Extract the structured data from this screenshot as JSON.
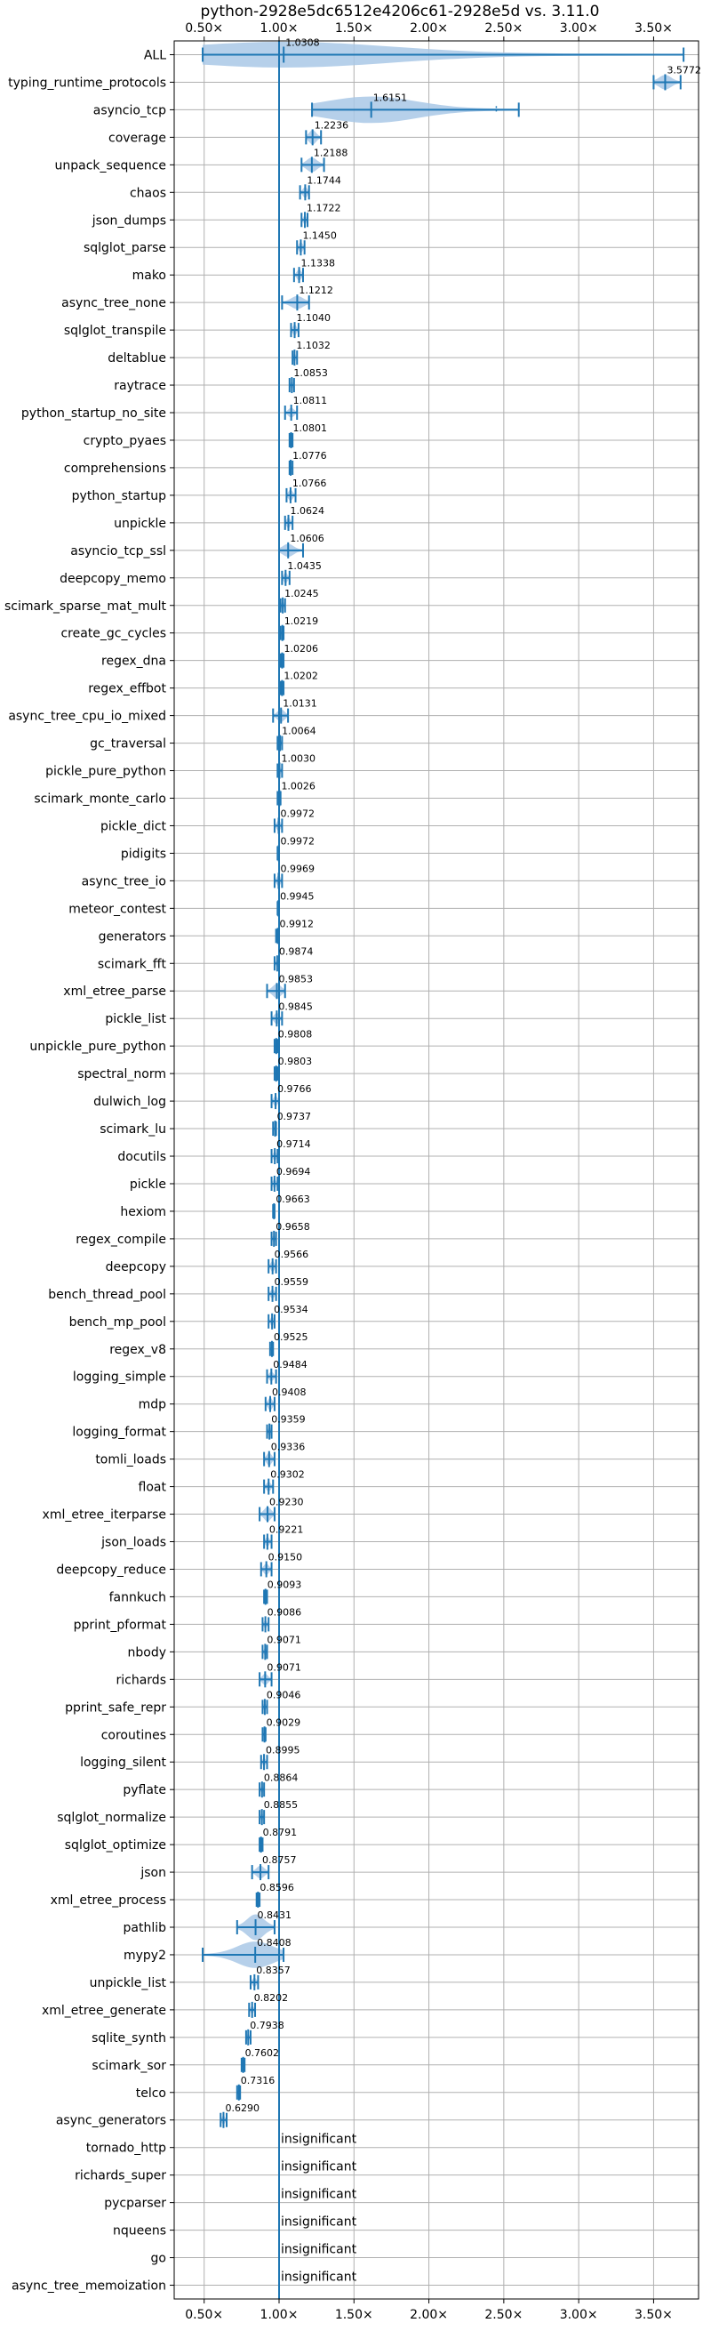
{
  "chart_data": {
    "type": "violin",
    "title": "python-2928e5dc6512e4206c61-2928e5d vs. 3.11.0",
    "xlim": [
      0.3,
      3.8
    ],
    "x_ticks": [
      0.5,
      1.0,
      1.5,
      2.0,
      2.5,
      3.0,
      3.5
    ],
    "x_tick_labels": [
      "0.50×",
      "1.00×",
      "1.50×",
      "2.00×",
      "2.50×",
      "3.00×",
      "3.50×"
    ],
    "reference_line": 1.0,
    "grid": true,
    "insignificant_label": "insignificant",
    "rows": [
      {
        "name": "ALL",
        "label": "1.0308",
        "median": 1.0308,
        "min": 0.49,
        "max": 3.7,
        "width": 0.15,
        "outliers": []
      },
      {
        "name": "typing_runtime_protocols",
        "label": "3.5772",
        "median": 3.5772,
        "min": 3.5,
        "max": 3.68,
        "width": 0.08,
        "outliers": []
      },
      {
        "name": "asyncio_tcp",
        "label": "1.6151",
        "median": 1.6151,
        "min": 1.22,
        "max": 2.6,
        "width": 0.35,
        "outliers": [
          2.45
        ]
      },
      {
        "name": "coverage",
        "label": "1.2236",
        "median": 1.2236,
        "min": 1.18,
        "max": 1.28,
        "width": 0.08,
        "outliers": []
      },
      {
        "name": "unpack_sequence",
        "label": "1.2188",
        "median": 1.2188,
        "min": 1.15,
        "max": 1.3,
        "width": 0.08,
        "outliers": []
      },
      {
        "name": "chaos",
        "label": "1.1744",
        "median": 1.1744,
        "min": 1.14,
        "max": 1.2,
        "width": 0.06,
        "outliers": []
      },
      {
        "name": "json_dumps",
        "label": "1.1722",
        "median": 1.1722,
        "min": 1.15,
        "max": 1.19,
        "width": 0.05,
        "outliers": []
      },
      {
        "name": "sqlglot_parse",
        "label": "1.1450",
        "median": 1.145,
        "min": 1.12,
        "max": 1.17,
        "width": 0.06,
        "outliers": []
      },
      {
        "name": "mako",
        "label": "1.1338",
        "median": 1.1338,
        "min": 1.1,
        "max": 1.16,
        "width": 0.06,
        "outliers": []
      },
      {
        "name": "async_tree_none",
        "label": "1.1212",
        "median": 1.1212,
        "min": 1.02,
        "max": 1.2,
        "width": 0.07,
        "outliers": []
      },
      {
        "name": "sqlglot_transpile",
        "label": "1.1040",
        "median": 1.104,
        "min": 1.08,
        "max": 1.13,
        "width": 0.06,
        "outliers": []
      },
      {
        "name": "deltablue",
        "label": "1.1032",
        "median": 1.1032,
        "min": 1.09,
        "max": 1.12,
        "width": 0.05,
        "outliers": []
      },
      {
        "name": "raytrace",
        "label": "1.0853",
        "median": 1.0853,
        "min": 1.07,
        "max": 1.1,
        "width": 0.04,
        "outliers": []
      },
      {
        "name": "python_startup_no_site",
        "label": "1.0811",
        "median": 1.0811,
        "min": 1.04,
        "max": 1.12,
        "width": 0.05,
        "outliers": []
      },
      {
        "name": "crypto_pyaes",
        "label": "1.0801",
        "median": 1.0801,
        "min": 1.07,
        "max": 1.09,
        "width": 0.04,
        "outliers": []
      },
      {
        "name": "comprehensions",
        "label": "1.0776",
        "median": 1.0776,
        "min": 1.07,
        "max": 1.09,
        "width": 0.04,
        "outliers": []
      },
      {
        "name": "python_startup",
        "label": "1.0766",
        "median": 1.0766,
        "min": 1.05,
        "max": 1.11,
        "width": 0.06,
        "outliers": []
      },
      {
        "name": "unpickle",
        "label": "1.0624",
        "median": 1.0624,
        "min": 1.04,
        "max": 1.09,
        "width": 0.06,
        "outliers": []
      },
      {
        "name": "asyncio_tcp_ssl",
        "label": "1.0606",
        "median": 1.0606,
        "min": 1.0,
        "max": 1.16,
        "width": 0.07,
        "outliers": []
      },
      {
        "name": "deepcopy_memo",
        "label": "1.0435",
        "median": 1.0435,
        "min": 1.02,
        "max": 1.07,
        "width": 0.06,
        "outliers": []
      },
      {
        "name": "scimark_sparse_mat_mult",
        "label": "1.0245",
        "median": 1.0245,
        "min": 1.01,
        "max": 1.04,
        "width": 0.05,
        "outliers": []
      },
      {
        "name": "create_gc_cycles",
        "label": "1.0219",
        "median": 1.0219,
        "min": 1.01,
        "max": 1.03,
        "width": 0.05,
        "outliers": []
      },
      {
        "name": "regex_dna",
        "label": "1.0206",
        "median": 1.0206,
        "min": 1.01,
        "max": 1.03,
        "width": 0.05,
        "outliers": []
      },
      {
        "name": "regex_effbot",
        "label": "1.0202",
        "median": 1.0202,
        "min": 1.01,
        "max": 1.03,
        "width": 0.04,
        "outliers": []
      },
      {
        "name": "async_tree_cpu_io_mixed",
        "label": "1.0131",
        "median": 1.0131,
        "min": 0.96,
        "max": 1.06,
        "width": 0.07,
        "outliers": []
      },
      {
        "name": "gc_traversal",
        "label": "1.0064",
        "median": 1.0064,
        "min": 0.99,
        "max": 1.02,
        "width": 0.04,
        "outliers": []
      },
      {
        "name": "pickle_pure_python",
        "label": "1.0030",
        "median": 1.003,
        "min": 0.99,
        "max": 1.02,
        "width": 0.05,
        "outliers": []
      },
      {
        "name": "scimark_monte_carlo",
        "label": "1.0026",
        "median": 1.0026,
        "min": 0.99,
        "max": 1.01,
        "width": 0.04,
        "outliers": []
      },
      {
        "name": "pickle_dict",
        "label": "0.9972",
        "median": 0.9972,
        "min": 0.97,
        "max": 1.02,
        "width": 0.06,
        "outliers": []
      },
      {
        "name": "pidigits",
        "label": "0.9972",
        "median": 0.9972,
        "min": 0.99,
        "max": 1.0,
        "width": 0.03,
        "outliers": []
      },
      {
        "name": "async_tree_io",
        "label": "0.9969",
        "median": 0.9969,
        "min": 0.97,
        "max": 1.02,
        "width": 0.06,
        "outliers": []
      },
      {
        "name": "meteor_contest",
        "label": "0.9945",
        "median": 0.9945,
        "min": 0.99,
        "max": 1.0,
        "width": 0.03,
        "outliers": []
      },
      {
        "name": "generators",
        "label": "0.9912",
        "median": 0.9912,
        "min": 0.98,
        "max": 1.0,
        "width": 0.03,
        "outliers": []
      },
      {
        "name": "scimark_fft",
        "label": "0.9874",
        "median": 0.9874,
        "min": 0.97,
        "max": 1.0,
        "width": 0.04,
        "outliers": []
      },
      {
        "name": "xml_etree_parse",
        "label": "0.9853",
        "median": 0.9853,
        "min": 0.92,
        "max": 1.04,
        "width": 0.08,
        "outliers": []
      },
      {
        "name": "pickle_list",
        "label": "0.9845",
        "median": 0.9845,
        "min": 0.95,
        "max": 1.02,
        "width": 0.06,
        "outliers": []
      },
      {
        "name": "unpickle_pure_python",
        "label": "0.9808",
        "median": 0.9808,
        "min": 0.97,
        "max": 0.99,
        "width": 0.04,
        "outliers": []
      },
      {
        "name": "spectral_norm",
        "label": "0.9803",
        "median": 0.9803,
        "min": 0.97,
        "max": 0.99,
        "width": 0.04,
        "outliers": []
      },
      {
        "name": "dulwich_log",
        "label": "0.9766",
        "median": 0.9766,
        "min": 0.95,
        "max": 1.0,
        "width": 0.06,
        "outliers": []
      },
      {
        "name": "scimark_lu",
        "label": "0.9737",
        "median": 0.9737,
        "min": 0.96,
        "max": 0.98,
        "width": 0.04,
        "outliers": []
      },
      {
        "name": "docutils",
        "label": "0.9714",
        "median": 0.9714,
        "min": 0.95,
        "max": 0.99,
        "width": 0.05,
        "outliers": []
      },
      {
        "name": "pickle",
        "label": "0.9694",
        "median": 0.9694,
        "min": 0.95,
        "max": 0.99,
        "width": 0.05,
        "outliers": []
      },
      {
        "name": "hexiom",
        "label": "0.9663",
        "median": 0.9663,
        "min": 0.96,
        "max": 0.97,
        "width": 0.03,
        "outliers": []
      },
      {
        "name": "regex_compile",
        "label": "0.9658",
        "median": 0.9658,
        "min": 0.95,
        "max": 0.98,
        "width": 0.04,
        "outliers": []
      },
      {
        "name": "deepcopy",
        "label": "0.9566",
        "median": 0.9566,
        "min": 0.93,
        "max": 0.98,
        "width": 0.06,
        "outliers": []
      },
      {
        "name": "bench_thread_pool",
        "label": "0.9559",
        "median": 0.9559,
        "min": 0.93,
        "max": 0.98,
        "width": 0.05,
        "outliers": []
      },
      {
        "name": "bench_mp_pool",
        "label": "0.9534",
        "median": 0.9534,
        "min": 0.93,
        "max": 0.97,
        "width": 0.05,
        "outliers": []
      },
      {
        "name": "regex_v8",
        "label": "0.9525",
        "median": 0.9525,
        "min": 0.94,
        "max": 0.96,
        "width": 0.04,
        "outliers": []
      },
      {
        "name": "logging_simple",
        "label": "0.9484",
        "median": 0.9484,
        "min": 0.92,
        "max": 0.98,
        "width": 0.05,
        "outliers": []
      },
      {
        "name": "mdp",
        "label": "0.9408",
        "median": 0.9408,
        "min": 0.91,
        "max": 0.97,
        "width": 0.07,
        "outliers": []
      },
      {
        "name": "logging_format",
        "label": "0.9359",
        "median": 0.9359,
        "min": 0.92,
        "max": 0.95,
        "width": 0.05,
        "outliers": []
      },
      {
        "name": "tomli_loads",
        "label": "0.9336",
        "median": 0.9336,
        "min": 0.9,
        "max": 0.97,
        "width": 0.07,
        "outliers": []
      },
      {
        "name": "float",
        "label": "0.9302",
        "median": 0.9302,
        "min": 0.9,
        "max": 0.96,
        "width": 0.05,
        "outliers": []
      },
      {
        "name": "xml_etree_iterparse",
        "label": "0.9230",
        "median": 0.923,
        "min": 0.87,
        "max": 0.97,
        "width": 0.08,
        "outliers": []
      },
      {
        "name": "json_loads",
        "label": "0.9221",
        "median": 0.9221,
        "min": 0.9,
        "max": 0.95,
        "width": 0.05,
        "outliers": []
      },
      {
        "name": "deepcopy_reduce",
        "label": "0.9150",
        "median": 0.915,
        "min": 0.88,
        "max": 0.95,
        "width": 0.06,
        "outliers": []
      },
      {
        "name": "fannkuch",
        "label": "0.9093",
        "median": 0.9093,
        "min": 0.9,
        "max": 0.92,
        "width": 0.03,
        "outliers": []
      },
      {
        "name": "pprint_pformat",
        "label": "0.9086",
        "median": 0.9086,
        "min": 0.89,
        "max": 0.93,
        "width": 0.04,
        "outliers": []
      },
      {
        "name": "nbody",
        "label": "0.9071",
        "median": 0.9071,
        "min": 0.89,
        "max": 0.92,
        "width": 0.04,
        "outliers": []
      },
      {
        "name": "richards",
        "label": "0.9071",
        "median": 0.9071,
        "min": 0.87,
        "max": 0.95,
        "width": 0.06,
        "outliers": []
      },
      {
        "name": "pprint_safe_repr",
        "label": "0.9046",
        "median": 0.9046,
        "min": 0.89,
        "max": 0.92,
        "width": 0.04,
        "outliers": []
      },
      {
        "name": "coroutines",
        "label": "0.9029",
        "median": 0.9029,
        "min": 0.89,
        "max": 0.91,
        "width": 0.03,
        "outliers": []
      },
      {
        "name": "logging_silent",
        "label": "0.8995",
        "median": 0.8995,
        "min": 0.88,
        "max": 0.92,
        "width": 0.04,
        "outliers": []
      },
      {
        "name": "pyflate",
        "label": "0.8864",
        "median": 0.8864,
        "min": 0.87,
        "max": 0.9,
        "width": 0.04,
        "outliers": []
      },
      {
        "name": "sqlglot_normalize",
        "label": "0.8855",
        "median": 0.8855,
        "min": 0.87,
        "max": 0.9,
        "width": 0.04,
        "outliers": []
      },
      {
        "name": "sqlglot_optimize",
        "label": "0.8791",
        "median": 0.8791,
        "min": 0.87,
        "max": 0.89,
        "width": 0.04,
        "outliers": []
      },
      {
        "name": "json",
        "label": "0.8757",
        "median": 0.8757,
        "min": 0.82,
        "max": 0.93,
        "width": 0.07,
        "outliers": []
      },
      {
        "name": "xml_etree_process",
        "label": "0.8596",
        "median": 0.8596,
        "min": 0.85,
        "max": 0.87,
        "width": 0.04,
        "outliers": []
      },
      {
        "name": "pathlib",
        "label": "0.8431",
        "median": 0.8431,
        "min": 0.72,
        "max": 0.97,
        "width": 0.15,
        "outliers": []
      },
      {
        "name": "mypy2",
        "label": "0.8408",
        "median": 0.8408,
        "min": 0.49,
        "max": 1.03,
        "width": 0.25,
        "outliers": []
      },
      {
        "name": "unpickle_list",
        "label": "0.8357",
        "median": 0.8357,
        "min": 0.81,
        "max": 0.86,
        "width": 0.05,
        "outliers": []
      },
      {
        "name": "xml_etree_generate",
        "label": "0.8202",
        "median": 0.8202,
        "min": 0.8,
        "max": 0.84,
        "width": 0.04,
        "outliers": []
      },
      {
        "name": "sqlite_synth",
        "label": "0.7938",
        "median": 0.7938,
        "min": 0.78,
        "max": 0.81,
        "width": 0.04,
        "outliers": []
      },
      {
        "name": "scimark_sor",
        "label": "0.7602",
        "median": 0.7602,
        "min": 0.75,
        "max": 0.77,
        "width": 0.03,
        "outliers": []
      },
      {
        "name": "telco",
        "label": "0.7316",
        "median": 0.7316,
        "min": 0.72,
        "max": 0.74,
        "width": 0.03,
        "outliers": []
      },
      {
        "name": "async_generators",
        "label": "0.6290",
        "median": 0.629,
        "min": 0.61,
        "max": 0.65,
        "width": 0.05,
        "outliers": []
      },
      {
        "name": "tornado_http",
        "insignificant": true
      },
      {
        "name": "richards_super",
        "insignificant": true
      },
      {
        "name": "pycparser",
        "insignificant": true
      },
      {
        "name": "nqueens",
        "insignificant": true
      },
      {
        "name": "go",
        "insignificant": true
      },
      {
        "name": "async_tree_memoization",
        "insignificant": true
      }
    ]
  },
  "colors": {
    "line": "#1f77b4",
    "violin_fill": "#a9c8e6",
    "grid": "#b0b0b0",
    "axis": "#000000"
  }
}
